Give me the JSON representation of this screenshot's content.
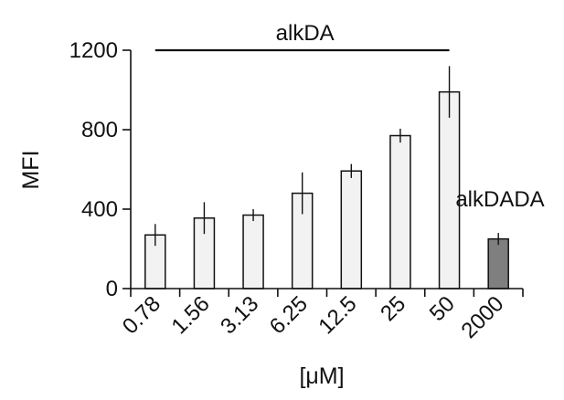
{
  "chart_data": {
    "type": "bar",
    "title": "",
    "xlabel": "[μM]",
    "ylabel": "MFI",
    "ylim": [
      0,
      1200
    ],
    "yticks": [
      0,
      400,
      800,
      1200
    ],
    "grid": false,
    "categories": [
      "0.78",
      "1.56",
      "3.13",
      "6.25",
      "12.5",
      "25",
      "50",
      "2000"
    ],
    "values": [
      270,
      355,
      370,
      480,
      592,
      770,
      990,
      250
    ],
    "errors": [
      55,
      80,
      30,
      105,
      35,
      35,
      130,
      30
    ],
    "groups": [
      {
        "label": "alkDA",
        "range": [
          0,
          6
        ],
        "color": "#f2f2f2"
      },
      {
        "label": "alkDADA",
        "range": [
          7,
          7
        ],
        "color": "#7f7f7f"
      }
    ]
  }
}
